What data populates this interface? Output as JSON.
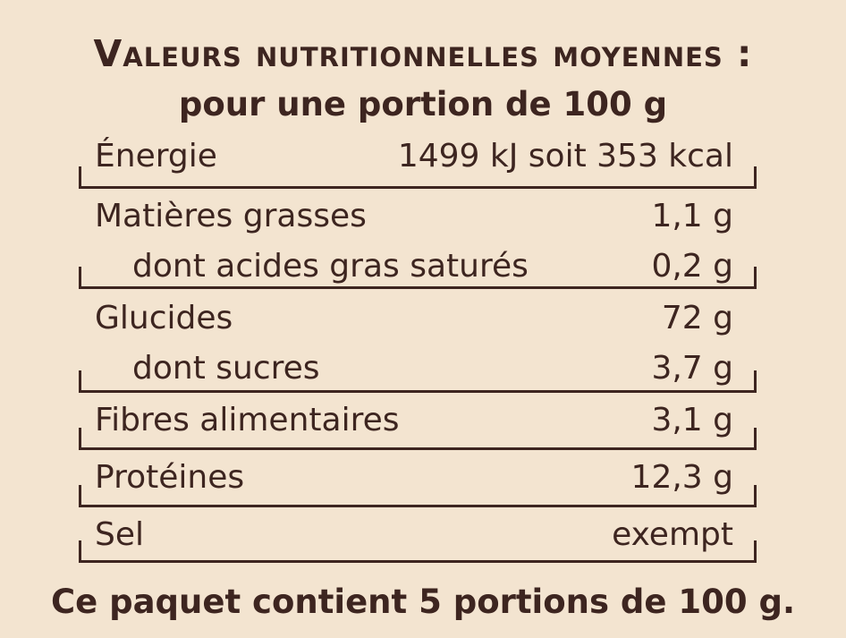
{
  "header": {
    "title": "Valeurs nutritionnelles moyennes :",
    "subtitle": "pour une portion de 100 g"
  },
  "nutrition_table": {
    "energy": {
      "label": "Énergie",
      "value": "1499 kJ soit 353 kcal"
    },
    "fat": {
      "label": "Matières grasses",
      "value": "1,1 g"
    },
    "saturated_fat": {
      "label": "dont acides gras saturés",
      "value": "0,2 g"
    },
    "carbohydrates": {
      "label": "Glucides",
      "value": "72 g"
    },
    "sugars": {
      "label": "dont sucres",
      "value": "3,7 g"
    },
    "fibre": {
      "label": "Fibres alimentaires",
      "value": "3,1 g"
    },
    "protein": {
      "label": "Protéines",
      "value": "12,3 g"
    },
    "salt": {
      "label": "Sel",
      "value": "exempt"
    }
  },
  "footer": {
    "text": "Ce paquet contient 5 portions de 100 g."
  },
  "colors": {
    "background": "#f3e4d0",
    "text": "#3d2520"
  }
}
